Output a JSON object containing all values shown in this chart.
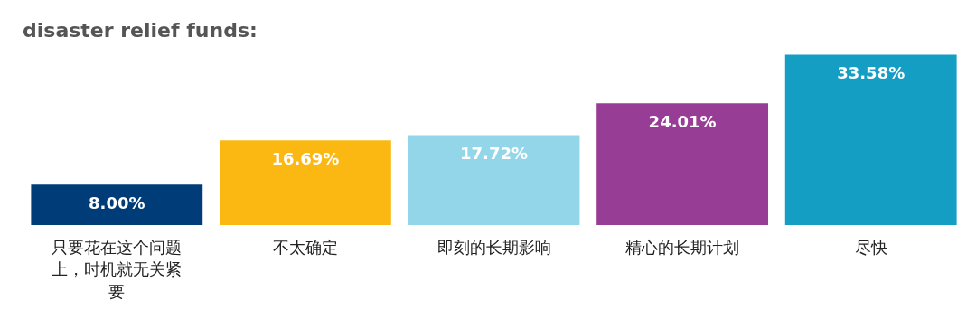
{
  "chart_data": {
    "type": "bar",
    "title": "disaster relief funds:",
    "categories": [
      "只要花在这个问题上，时机就无关紧要",
      "不太确定",
      "即刻的长期影响",
      "精心的长期计划",
      "尽快"
    ],
    "values": [
      8.0,
      16.69,
      17.72,
      24.01,
      33.58
    ],
    "value_labels": [
      "8.00%",
      "16.69%",
      "17.72%",
      "24.01%",
      "33.58%"
    ],
    "colors": [
      "#003d78",
      "#fbb813",
      "#93d6e9",
      "#983d95",
      "#149ec4"
    ],
    "grid": false,
    "legend": false
  }
}
